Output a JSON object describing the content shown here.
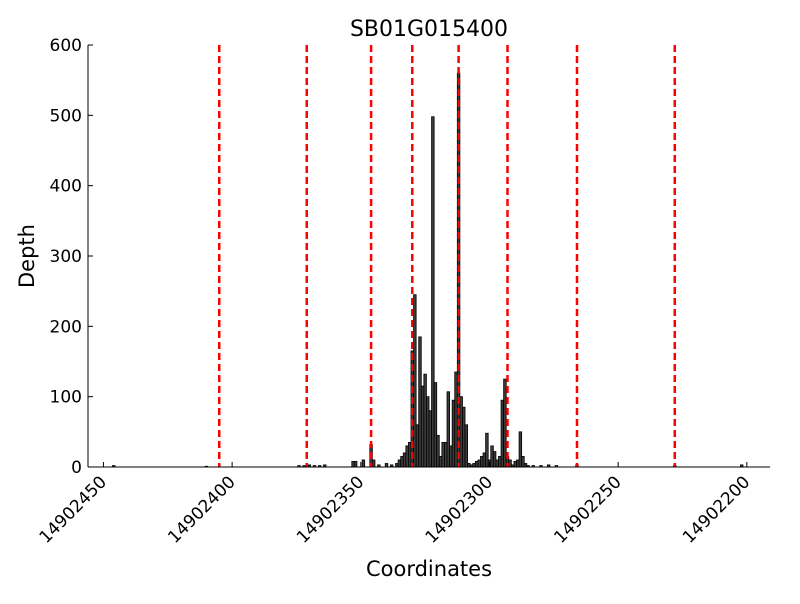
{
  "chart_data": {
    "type": "bar",
    "title": "SB01G015400",
    "x_label": "Coordinates",
    "y_label": "Depth",
    "x": [
      14902446,
      14902410,
      14902374,
      14902372,
      14902370,
      14902368,
      14902366,
      14902364,
      14902353,
      14902352,
      14902349,
      14902346,
      14902345,
      14902343,
      14902340,
      14902338,
      14902336,
      14902335,
      14902334,
      14902333,
      14902332,
      14902331,
      14902330,
      14902329,
      14902328,
      14902327,
      14902326,
      14902325,
      14902324,
      14902323,
      14902322,
      14902321,
      14902320,
      14902319,
      14902318,
      14902317,
      14902316,
      14902315,
      14902314,
      14902313,
      14902312,
      14902311,
      14902310,
      14902309,
      14902308,
      14902307,
      14902306,
      14902305,
      14902304,
      14902303,
      14902302,
      14902301,
      14902300,
      14902299,
      14902298,
      14902297,
      14902296,
      14902295,
      14902294,
      14902293,
      14902292,
      14902291,
      14902290,
      14902289,
      14902288,
      14902287,
      14902286,
      14902285,
      14902283,
      14902280,
      14902277,
      14902274,
      14902266,
      14902228,
      14902202
    ],
    "values": [
      2,
      1,
      2,
      2,
      3,
      2,
      2,
      3,
      8,
      8,
      10,
      32,
      10,
      3,
      5,
      3,
      5,
      10,
      15,
      20,
      30,
      35,
      165,
      245,
      60,
      185,
      115,
      132,
      100,
      80,
      498,
      120,
      45,
      15,
      35,
      35,
      107,
      30,
      95,
      135,
      560,
      100,
      85,
      60,
      5,
      3,
      5,
      8,
      10,
      15,
      20,
      48,
      10,
      30,
      22,
      10,
      15,
      95,
      125,
      15,
      10,
      3,
      8,
      10,
      50,
      15,
      5,
      2,
      2,
      2,
      3,
      2,
      3,
      2,
      3
    ],
    "color": "#3c3c3c",
    "vlines": [
      14902405,
      14902371,
      14902346,
      14902330,
      14902312,
      14902293,
      14902266,
      14902228
    ],
    "vline_color": "#ff0000",
    "xlim": [
      14902456,
      14902191
    ],
    "xticks": [
      14902450,
      14902400,
      14902350,
      14902300,
      14902250,
      14902200
    ],
    "ylim": [
      0,
      600
    ],
    "yticks": [
      0,
      100,
      200,
      300,
      400,
      500,
      600
    ]
  }
}
